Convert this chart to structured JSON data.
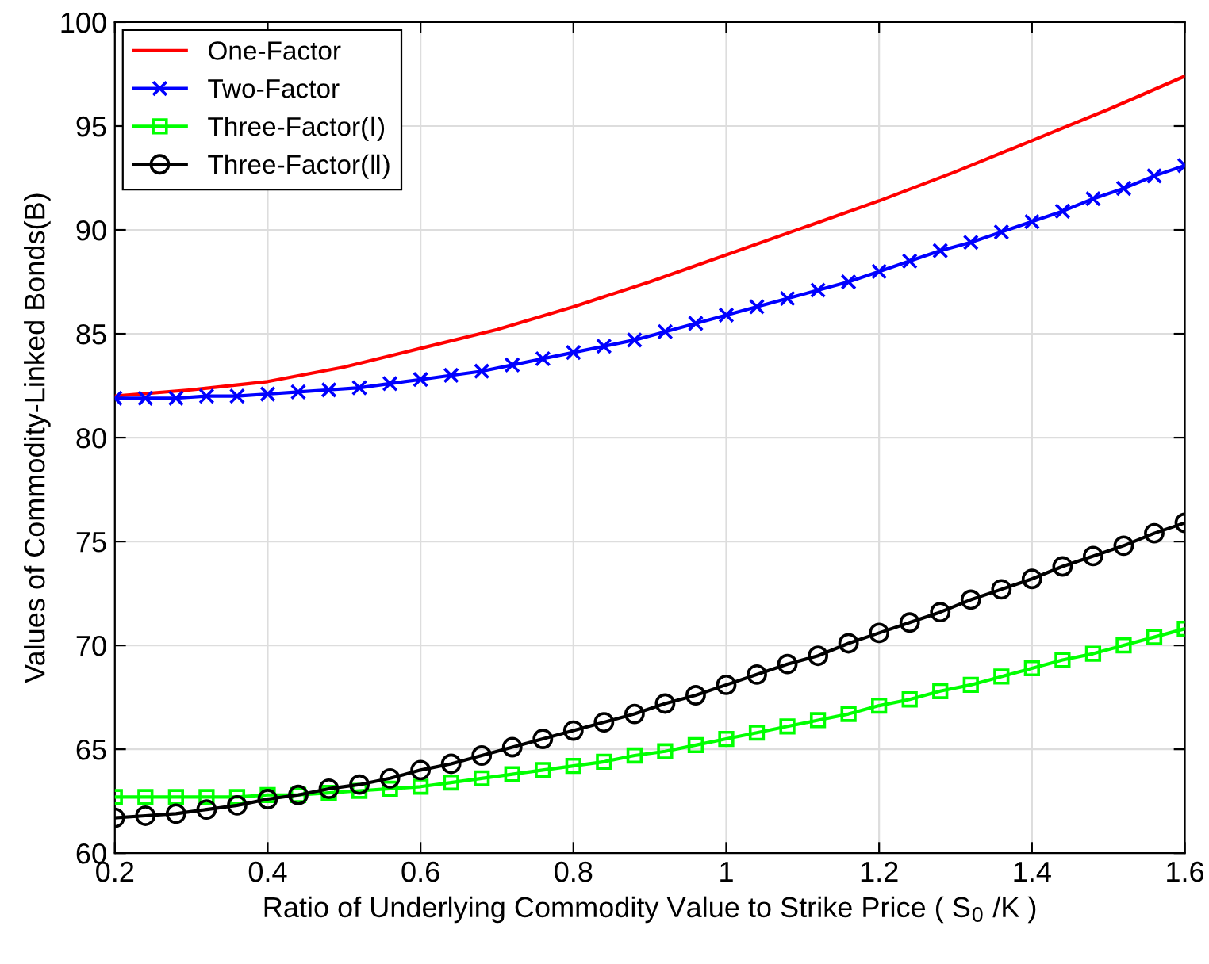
{
  "chart_data": {
    "type": "line",
    "xlabel": "Ratio of Underlying Commodity Value to Strike Price ( S$_{0}$ /K )",
    "ylabel": "Values of Commodity-Linked Bonds(B)",
    "xlim": [
      0.2,
      1.6
    ],
    "ylim": [
      60,
      100
    ],
    "xticks": [
      0.2,
      0.4,
      0.6,
      0.8,
      1,
      1.2,
      1.4,
      1.6
    ],
    "yticks": [
      60,
      65,
      70,
      75,
      80,
      85,
      90,
      95,
      100
    ],
    "grid": true,
    "legend": "top left",
    "series": [
      {
        "name": "One-Factor",
        "color": "#ff0000",
        "marker": "none",
        "x": [
          0.2,
          0.3,
          0.4,
          0.5,
          0.6,
          0.7,
          0.8,
          0.9,
          1.0,
          1.1,
          1.2,
          1.3,
          1.4,
          1.5,
          1.6
        ],
        "values": [
          82.0,
          82.3,
          82.7,
          83.4,
          84.3,
          85.2,
          86.3,
          87.5,
          88.8,
          90.1,
          91.4,
          92.8,
          94.3,
          95.8,
          97.4
        ]
      },
      {
        "name": "Two-Factor",
        "color": "#0000ff",
        "marker": "cross",
        "x": [
          0.2,
          0.24,
          0.28,
          0.32,
          0.36,
          0.4,
          0.44,
          0.48,
          0.52,
          0.56,
          0.6,
          0.64,
          0.68,
          0.72,
          0.76,
          0.8,
          0.84,
          0.88,
          0.92,
          0.96,
          1.0,
          1.04,
          1.08,
          1.12,
          1.16,
          1.2,
          1.24,
          1.28,
          1.32,
          1.36,
          1.4,
          1.44,
          1.48,
          1.52,
          1.56,
          1.6
        ],
        "values": [
          81.9,
          81.9,
          81.9,
          82.0,
          82.0,
          82.1,
          82.2,
          82.3,
          82.4,
          82.6,
          82.8,
          83.0,
          83.2,
          83.5,
          83.8,
          84.1,
          84.4,
          84.7,
          85.1,
          85.5,
          85.9,
          86.3,
          86.7,
          87.1,
          87.5,
          88.0,
          88.5,
          89.0,
          89.4,
          89.9,
          90.4,
          90.9,
          91.5,
          92.0,
          92.6,
          93.1
        ]
      },
      {
        "name": "Three-Factor(Ⅰ)",
        "color": "#00ff00",
        "marker": "square",
        "x": [
          0.2,
          0.24,
          0.28,
          0.32,
          0.36,
          0.4,
          0.44,
          0.48,
          0.52,
          0.56,
          0.6,
          0.64,
          0.68,
          0.72,
          0.76,
          0.8,
          0.84,
          0.88,
          0.92,
          0.96,
          1.0,
          1.04,
          1.08,
          1.12,
          1.16,
          1.2,
          1.24,
          1.28,
          1.32,
          1.36,
          1.4,
          1.44,
          1.48,
          1.52,
          1.56,
          1.6
        ],
        "values": [
          62.7,
          62.7,
          62.7,
          62.7,
          62.7,
          62.8,
          62.8,
          62.9,
          63.0,
          63.1,
          63.2,
          63.4,
          63.6,
          63.8,
          64.0,
          64.2,
          64.4,
          64.7,
          64.9,
          65.2,
          65.5,
          65.8,
          66.1,
          66.4,
          66.7,
          67.1,
          67.4,
          67.8,
          68.1,
          68.5,
          68.9,
          69.3,
          69.6,
          70.0,
          70.4,
          70.8
        ]
      },
      {
        "name": "Three-Factor(Ⅱ)",
        "color": "#000000",
        "marker": "circle",
        "x": [
          0.2,
          0.24,
          0.28,
          0.32,
          0.36,
          0.4,
          0.44,
          0.48,
          0.52,
          0.56,
          0.6,
          0.64,
          0.68,
          0.72,
          0.76,
          0.8,
          0.84,
          0.88,
          0.92,
          0.96,
          1.0,
          1.04,
          1.08,
          1.12,
          1.16,
          1.2,
          1.24,
          1.28,
          1.32,
          1.36,
          1.4,
          1.44,
          1.48,
          1.52,
          1.56,
          1.6
        ],
        "values": [
          61.7,
          61.8,
          61.9,
          62.1,
          62.3,
          62.6,
          62.8,
          63.1,
          63.3,
          63.6,
          64.0,
          64.3,
          64.7,
          65.1,
          65.5,
          65.9,
          66.3,
          66.7,
          67.2,
          67.6,
          68.1,
          68.6,
          69.1,
          69.5,
          70.1,
          70.6,
          71.1,
          71.6,
          72.2,
          72.7,
          73.2,
          73.8,
          74.3,
          74.8,
          75.4,
          75.9
        ]
      }
    ]
  }
}
